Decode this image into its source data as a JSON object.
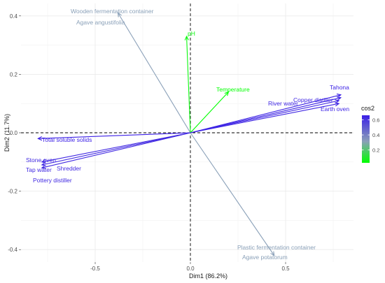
{
  "chart_data": {
    "type": "scatter",
    "subtype": "pca-variable-biplot",
    "title": "",
    "xlabel": "Dim1 (86.2%)",
    "ylabel": "Dim2 (11.7%)",
    "xlim": [
      -0.9,
      0.95
    ],
    "ylim": [
      -0.48,
      0.45
    ],
    "x_ticks": [
      -0.5,
      0.0,
      0.5
    ],
    "x_tick_labels": [
      "-0.5",
      "0.0",
      "0.5"
    ],
    "y_ticks": [
      -0.4,
      -0.2,
      0.0,
      0.2,
      0.4
    ],
    "y_tick_labels": [
      "-0.4",
      "-0.2",
      "0.0",
      "0.2",
      "0.4"
    ],
    "grid": true,
    "reference_lines": {
      "x": 0,
      "y": 0,
      "style": "dashed"
    },
    "legend": {
      "title": "cos2",
      "placement": "right",
      "ticks": [
        0.6,
        0.4,
        0.2
      ],
      "tick_labels": [
        "0.6",
        "0.4",
        "0.2"
      ],
      "color_low": "#00ff00",
      "color_mid": "#8aa0b8",
      "color_high": "#3b1fe6"
    },
    "variables": [
      {
        "name": "Wooden fermentation container",
        "x": -0.38,
        "y": 0.41,
        "cos2": 0.3
      },
      {
        "name": "Agave angustifolia",
        "x": -0.38,
        "y": 0.41,
        "cos2": 0.3
      },
      {
        "name": "pH",
        "x": -0.02,
        "y": 0.33,
        "cos2": 0.05
      },
      {
        "name": "Temperature",
        "x": 0.2,
        "y": 0.14,
        "cos2": 0.03
      },
      {
        "name": "Tahona",
        "x": 0.79,
        "y": 0.13,
        "cos2": 0.65
      },
      {
        "name": "Copper distiller",
        "x": 0.78,
        "y": 0.11,
        "cos2": 0.64
      },
      {
        "name": "River water",
        "x": 0.78,
        "y": 0.1,
        "cos2": 0.64
      },
      {
        "name": "Earth oven",
        "x": 0.79,
        "y": 0.12,
        "cos2": 0.65
      },
      {
        "name": "Total soluble solids",
        "x": -0.8,
        "y": -0.02,
        "cos2": 0.66
      },
      {
        "name": "Stone oven",
        "x": -0.78,
        "y": -0.1,
        "cos2": 0.63
      },
      {
        "name": "Tap water",
        "x": -0.78,
        "y": -0.11,
        "cos2": 0.63
      },
      {
        "name": "Shredder",
        "x": -0.78,
        "y": -0.11,
        "cos2": 0.63
      },
      {
        "name": "Pottery distiller",
        "x": -0.78,
        "y": -0.12,
        "cos2": 0.63
      },
      {
        "name": "Plastic fermentation container",
        "x": 0.44,
        "y": -0.42,
        "cos2": 0.3
      },
      {
        "name": "Agave potatorum",
        "x": 0.44,
        "y": -0.42,
        "cos2": 0.3
      }
    ]
  }
}
